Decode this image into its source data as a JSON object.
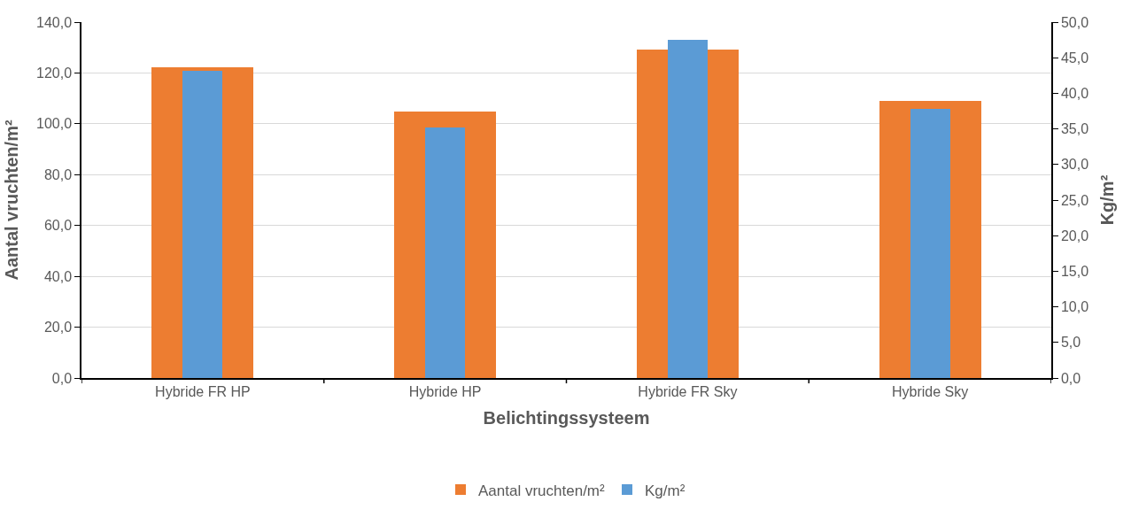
{
  "chart_data": {
    "type": "bar",
    "xlabel": "Belichtingssysteem",
    "ylabel": "Aantal vruchten/m²",
    "y2label": "Kg/m²",
    "categories": [
      "Hybride FR HP",
      "Hybride HP",
      "Hybride FR Sky",
      "Hybride Sky"
    ],
    "series": [
      {
        "name": "Aantal vruchten/m²",
        "color": "#ed7d31",
        "values": [
          122.2,
          105.0,
          129.3,
          108.9
        ]
      },
      {
        "name": "Kg/m²",
        "color": "#5b9bd5",
        "values": [
          43.2,
          35.2,
          47.5,
          37.8
        ],
        "axis": "y2"
      }
    ],
    "ylim": [
      0,
      140
    ],
    "yticks": [
      {
        "value": 0,
        "label": "0,0"
      },
      {
        "value": 20,
        "label": "20,0"
      },
      {
        "value": 40,
        "label": "40,0"
      },
      {
        "value": 60,
        "label": "60,0"
      },
      {
        "value": 80,
        "label": "80,0"
      },
      {
        "value": 100,
        "label": "100,0"
      },
      {
        "value": 120,
        "label": "120,0"
      },
      {
        "value": 140,
        "label": "140,0"
      }
    ],
    "y2lim": [
      0,
      50
    ],
    "y2ticks": [
      {
        "value": 0,
        "label": "0,0"
      },
      {
        "value": 5,
        "label": "5,0"
      },
      {
        "value": 10,
        "label": "10,0"
      },
      {
        "value": 15,
        "label": "15,0"
      },
      {
        "value": 20,
        "label": "20,0"
      },
      {
        "value": 25,
        "label": "25,0"
      },
      {
        "value": 30,
        "label": "30,0"
      },
      {
        "value": 35,
        "label": "35,0"
      },
      {
        "value": 40,
        "label": "40,0"
      },
      {
        "value": 45,
        "label": "45,0"
      },
      {
        "value": 50,
        "label": "50,0"
      }
    ],
    "grid": "y",
    "legend": "bottom"
  }
}
